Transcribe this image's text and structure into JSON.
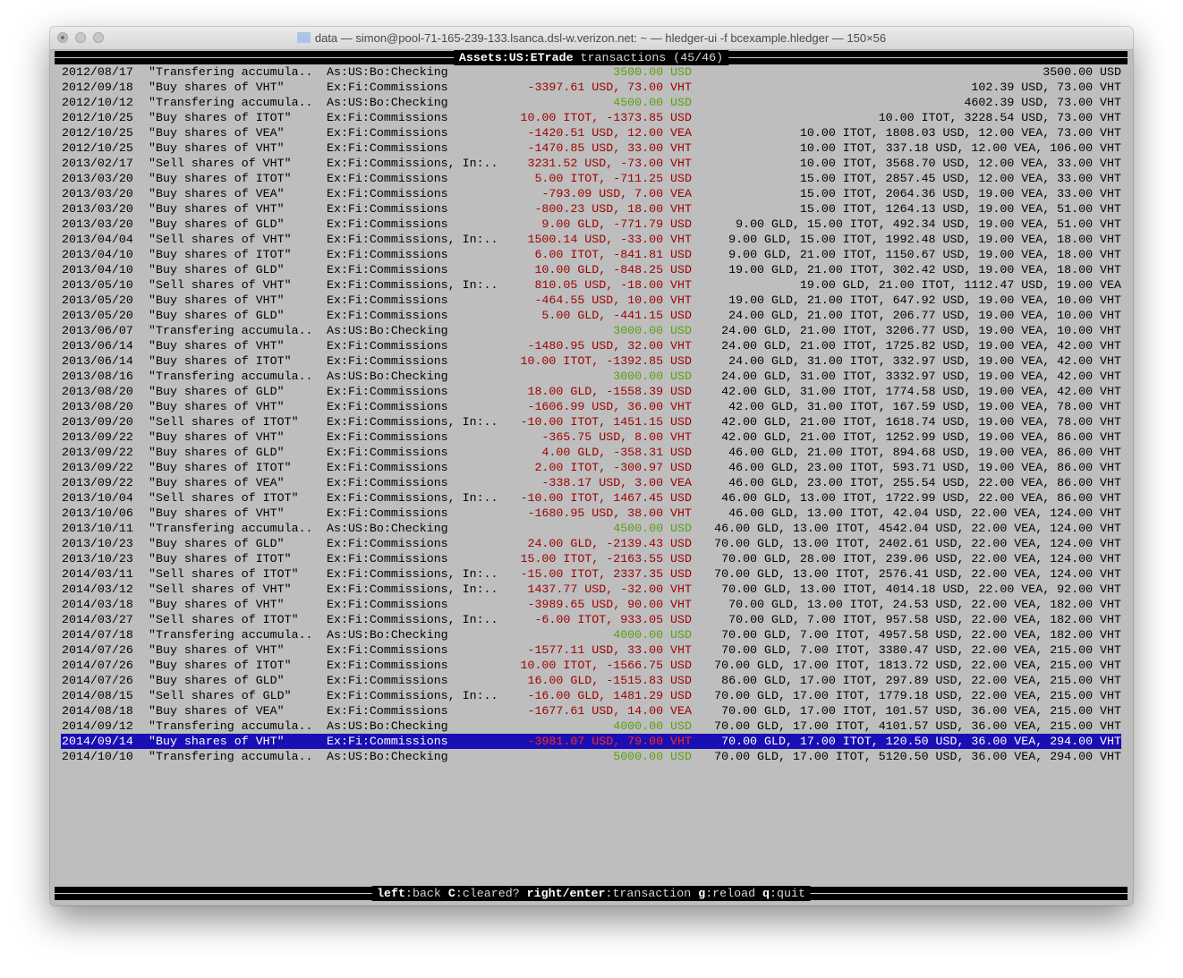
{
  "window": {
    "title": "data — simon@pool-71-165-239-133.lsanca.dsl-w.verizon.net: ~ — hledger-ui -f bcexample.hledger — 150×56"
  },
  "header": {
    "account": "Assets:US:ETrade",
    "suffix": " transactions (45/46)"
  },
  "colors": {
    "deposit": "#5aa012",
    "amount": "#9c0000",
    "selected_bg": "#1a0fb4",
    "background": "#bebebe"
  },
  "selected_index": 44,
  "transactions": [
    {
      "date": "2012/08/17",
      "desc": "\"Transfering accumula..",
      "account": "As:US:Bo:Checking",
      "amount": "3500.00 USD",
      "balance": "3500.00 USD",
      "color": "green"
    },
    {
      "date": "2012/09/18",
      "desc": "\"Buy shares of VHT\"",
      "account": "Ex:Fi:Commissions",
      "amount": "-3397.61 USD, 73.00 VHT",
      "balance": "102.39 USD, 73.00 VHT",
      "color": "red"
    },
    {
      "date": "2012/10/12",
      "desc": "\"Transfering accumula..",
      "account": "As:US:Bo:Checking",
      "amount": "4500.00 USD",
      "balance": "4602.39 USD, 73.00 VHT",
      "color": "green"
    },
    {
      "date": "2012/10/25",
      "desc": "\"Buy shares of ITOT\"",
      "account": "Ex:Fi:Commissions",
      "amount": "10.00 ITOT, -1373.85 USD",
      "balance": "10.00 ITOT, 3228.54 USD, 73.00 VHT",
      "color": "red"
    },
    {
      "date": "2012/10/25",
      "desc": "\"Buy shares of VEA\"",
      "account": "Ex:Fi:Commissions",
      "amount": "-1420.51 USD, 12.00 VEA",
      "balance": "10.00 ITOT, 1808.03 USD, 12.00 VEA, 73.00 VHT",
      "color": "red"
    },
    {
      "date": "2012/10/25",
      "desc": "\"Buy shares of VHT\"",
      "account": "Ex:Fi:Commissions",
      "amount": "-1470.85 USD, 33.00 VHT",
      "balance": "10.00 ITOT, 337.18 USD, 12.00 VEA, 106.00 VHT",
      "color": "red"
    },
    {
      "date": "2013/02/17",
      "desc": "\"Sell shares of VHT\"",
      "account": "Ex:Fi:Commissions, In:..",
      "amount": "3231.52 USD, -73.00 VHT",
      "balance": "10.00 ITOT, 3568.70 USD, 12.00 VEA, 33.00 VHT",
      "color": "red"
    },
    {
      "date": "2013/03/20",
      "desc": "\"Buy shares of ITOT\"",
      "account": "Ex:Fi:Commissions",
      "amount": "5.00 ITOT, -711.25 USD",
      "balance": "15.00 ITOT, 2857.45 USD, 12.00 VEA, 33.00 VHT",
      "color": "red"
    },
    {
      "date": "2013/03/20",
      "desc": "\"Buy shares of VEA\"",
      "account": "Ex:Fi:Commissions",
      "amount": "-793.09 USD, 7.00 VEA",
      "balance": "15.00 ITOT, 2064.36 USD, 19.00 VEA, 33.00 VHT",
      "color": "red"
    },
    {
      "date": "2013/03/20",
      "desc": "\"Buy shares of VHT\"",
      "account": "Ex:Fi:Commissions",
      "amount": "-800.23 USD, 18.00 VHT",
      "balance": "15.00 ITOT, 1264.13 USD, 19.00 VEA, 51.00 VHT",
      "color": "red"
    },
    {
      "date": "2013/03/20",
      "desc": "\"Buy shares of GLD\"",
      "account": "Ex:Fi:Commissions",
      "amount": "9.00 GLD, -771.79 USD",
      "balance": "9.00 GLD, 15.00 ITOT, 492.34 USD, 19.00 VEA, 51.00 VHT",
      "color": "red"
    },
    {
      "date": "2013/04/04",
      "desc": "\"Sell shares of VHT\"",
      "account": "Ex:Fi:Commissions, In:..",
      "amount": "1500.14 USD, -33.00 VHT",
      "balance": "9.00 GLD, 15.00 ITOT, 1992.48 USD, 19.00 VEA, 18.00 VHT",
      "color": "red"
    },
    {
      "date": "2013/04/10",
      "desc": "\"Buy shares of ITOT\"",
      "account": "Ex:Fi:Commissions",
      "amount": "6.00 ITOT, -841.81 USD",
      "balance": "9.00 GLD, 21.00 ITOT, 1150.67 USD, 19.00 VEA, 18.00 VHT",
      "color": "red"
    },
    {
      "date": "2013/04/10",
      "desc": "\"Buy shares of GLD\"",
      "account": "Ex:Fi:Commissions",
      "amount": "10.00 GLD, -848.25 USD",
      "balance": "19.00 GLD, 21.00 ITOT, 302.42 USD, 19.00 VEA, 18.00 VHT",
      "color": "red"
    },
    {
      "date": "2013/05/10",
      "desc": "\"Sell shares of VHT\"",
      "account": "Ex:Fi:Commissions, In:..",
      "amount": "810.05 USD, -18.00 VHT",
      "balance": "19.00 GLD, 21.00 ITOT, 1112.47 USD, 19.00 VEA",
      "color": "red"
    },
    {
      "date": "2013/05/20",
      "desc": "\"Buy shares of VHT\"",
      "account": "Ex:Fi:Commissions",
      "amount": "-464.55 USD, 10.00 VHT",
      "balance": "19.00 GLD, 21.00 ITOT, 647.92 USD, 19.00 VEA, 10.00 VHT",
      "color": "red"
    },
    {
      "date": "2013/05/20",
      "desc": "\"Buy shares of GLD\"",
      "account": "Ex:Fi:Commissions",
      "amount": "5.00 GLD, -441.15 USD",
      "balance": "24.00 GLD, 21.00 ITOT, 206.77 USD, 19.00 VEA, 10.00 VHT",
      "color": "red"
    },
    {
      "date": "2013/06/07",
      "desc": "\"Transfering accumula..",
      "account": "As:US:Bo:Checking",
      "amount": "3000.00 USD",
      "balance": "24.00 GLD, 21.00 ITOT, 3206.77 USD, 19.00 VEA, 10.00 VHT",
      "color": "green"
    },
    {
      "date": "2013/06/14",
      "desc": "\"Buy shares of VHT\"",
      "account": "Ex:Fi:Commissions",
      "amount": "-1480.95 USD, 32.00 VHT",
      "balance": "24.00 GLD, 21.00 ITOT, 1725.82 USD, 19.00 VEA, 42.00 VHT",
      "color": "red"
    },
    {
      "date": "2013/06/14",
      "desc": "\"Buy shares of ITOT\"",
      "account": "Ex:Fi:Commissions",
      "amount": "10.00 ITOT, -1392.85 USD",
      "balance": "24.00 GLD, 31.00 ITOT, 332.97 USD, 19.00 VEA, 42.00 VHT",
      "color": "red"
    },
    {
      "date": "2013/08/16",
      "desc": "\"Transfering accumula..",
      "account": "As:US:Bo:Checking",
      "amount": "3000.00 USD",
      "balance": "24.00 GLD, 31.00 ITOT, 3332.97 USD, 19.00 VEA, 42.00 VHT",
      "color": "green"
    },
    {
      "date": "2013/08/20",
      "desc": "\"Buy shares of GLD\"",
      "account": "Ex:Fi:Commissions",
      "amount": "18.00 GLD, -1558.39 USD",
      "balance": "42.00 GLD, 31.00 ITOT, 1774.58 USD, 19.00 VEA, 42.00 VHT",
      "color": "red"
    },
    {
      "date": "2013/08/20",
      "desc": "\"Buy shares of VHT\"",
      "account": "Ex:Fi:Commissions",
      "amount": "-1606.99 USD, 36.00 VHT",
      "balance": "42.00 GLD, 31.00 ITOT, 167.59 USD, 19.00 VEA, 78.00 VHT",
      "color": "red"
    },
    {
      "date": "2013/09/20",
      "desc": "\"Sell shares of ITOT\"",
      "account": "Ex:Fi:Commissions, In:..",
      "amount": "-10.00 ITOT, 1451.15 USD",
      "balance": "42.00 GLD, 21.00 ITOT, 1618.74 USD, 19.00 VEA, 78.00 VHT",
      "color": "red"
    },
    {
      "date": "2013/09/22",
      "desc": "\"Buy shares of VHT\"",
      "account": "Ex:Fi:Commissions",
      "amount": "-365.75 USD, 8.00 VHT",
      "balance": "42.00 GLD, 21.00 ITOT, 1252.99 USD, 19.00 VEA, 86.00 VHT",
      "color": "red"
    },
    {
      "date": "2013/09/22",
      "desc": "\"Buy shares of GLD\"",
      "account": "Ex:Fi:Commissions",
      "amount": "4.00 GLD, -358.31 USD",
      "balance": "46.00 GLD, 21.00 ITOT, 894.68 USD, 19.00 VEA, 86.00 VHT",
      "color": "red"
    },
    {
      "date": "2013/09/22",
      "desc": "\"Buy shares of ITOT\"",
      "account": "Ex:Fi:Commissions",
      "amount": "2.00 ITOT, -300.97 USD",
      "balance": "46.00 GLD, 23.00 ITOT, 593.71 USD, 19.00 VEA, 86.00 VHT",
      "color": "red"
    },
    {
      "date": "2013/09/22",
      "desc": "\"Buy shares of VEA\"",
      "account": "Ex:Fi:Commissions",
      "amount": "-338.17 USD, 3.00 VEA",
      "balance": "46.00 GLD, 23.00 ITOT, 255.54 USD, 22.00 VEA, 86.00 VHT",
      "color": "red"
    },
    {
      "date": "2013/10/04",
      "desc": "\"Sell shares of ITOT\"",
      "account": "Ex:Fi:Commissions, In:..",
      "amount": "-10.00 ITOT, 1467.45 USD",
      "balance": "46.00 GLD, 13.00 ITOT, 1722.99 USD, 22.00 VEA, 86.00 VHT",
      "color": "red"
    },
    {
      "date": "2013/10/06",
      "desc": "\"Buy shares of VHT\"",
      "account": "Ex:Fi:Commissions",
      "amount": "-1680.95 USD, 38.00 VHT",
      "balance": "46.00 GLD, 13.00 ITOT, 42.04 USD, 22.00 VEA, 124.00 VHT",
      "color": "red"
    },
    {
      "date": "2013/10/11",
      "desc": "\"Transfering accumula..",
      "account": "As:US:Bo:Checking",
      "amount": "4500.00 USD",
      "balance": "46.00 GLD, 13.00 ITOT, 4542.04 USD, 22.00 VEA, 124.00 VHT",
      "color": "green"
    },
    {
      "date": "2013/10/23",
      "desc": "\"Buy shares of GLD\"",
      "account": "Ex:Fi:Commissions",
      "amount": "24.00 GLD, -2139.43 USD",
      "balance": "70.00 GLD, 13.00 ITOT, 2402.61 USD, 22.00 VEA, 124.00 VHT",
      "color": "red"
    },
    {
      "date": "2013/10/23",
      "desc": "\"Buy shares of ITOT\"",
      "account": "Ex:Fi:Commissions",
      "amount": "15.00 ITOT, -2163.55 USD",
      "balance": "70.00 GLD, 28.00 ITOT, 239.06 USD, 22.00 VEA, 124.00 VHT",
      "color": "red"
    },
    {
      "date": "2014/03/11",
      "desc": "\"Sell shares of ITOT\"",
      "account": "Ex:Fi:Commissions, In:..",
      "amount": "-15.00 ITOT, 2337.35 USD",
      "balance": "70.00 GLD, 13.00 ITOT, 2576.41 USD, 22.00 VEA, 124.00 VHT",
      "color": "red"
    },
    {
      "date": "2014/03/12",
      "desc": "\"Sell shares of VHT\"",
      "account": "Ex:Fi:Commissions, In:..",
      "amount": "1437.77 USD, -32.00 VHT",
      "balance": "70.00 GLD, 13.00 ITOT, 4014.18 USD, 22.00 VEA, 92.00 VHT",
      "color": "red"
    },
    {
      "date": "2014/03/18",
      "desc": "\"Buy shares of VHT\"",
      "account": "Ex:Fi:Commissions",
      "amount": "-3989.65 USD, 90.00 VHT",
      "balance": "70.00 GLD, 13.00 ITOT, 24.53 USD, 22.00 VEA, 182.00 VHT",
      "color": "red"
    },
    {
      "date": "2014/03/27",
      "desc": "\"Sell shares of ITOT\"",
      "account": "Ex:Fi:Commissions, In:..",
      "amount": "-6.00 ITOT, 933.05 USD",
      "balance": "70.00 GLD, 7.00 ITOT, 957.58 USD, 22.00 VEA, 182.00 VHT",
      "color": "red"
    },
    {
      "date": "2014/07/18",
      "desc": "\"Transfering accumula..",
      "account": "As:US:Bo:Checking",
      "amount": "4000.00 USD",
      "balance": "70.00 GLD, 7.00 ITOT, 4957.58 USD, 22.00 VEA, 182.00 VHT",
      "color": "green"
    },
    {
      "date": "2014/07/26",
      "desc": "\"Buy shares of VHT\"",
      "account": "Ex:Fi:Commissions",
      "amount": "-1577.11 USD, 33.00 VHT",
      "balance": "70.00 GLD, 7.00 ITOT, 3380.47 USD, 22.00 VEA, 215.00 VHT",
      "color": "red"
    },
    {
      "date": "2014/07/26",
      "desc": "\"Buy shares of ITOT\"",
      "account": "Ex:Fi:Commissions",
      "amount": "10.00 ITOT, -1566.75 USD",
      "balance": "70.00 GLD, 17.00 ITOT, 1813.72 USD, 22.00 VEA, 215.00 VHT",
      "color": "red"
    },
    {
      "date": "2014/07/26",
      "desc": "\"Buy shares of GLD\"",
      "account": "Ex:Fi:Commissions",
      "amount": "16.00 GLD, -1515.83 USD",
      "balance": "86.00 GLD, 17.00 ITOT, 297.89 USD, 22.00 VEA, 215.00 VHT",
      "color": "red"
    },
    {
      "date": "2014/08/15",
      "desc": "\"Sell shares of GLD\"",
      "account": "Ex:Fi:Commissions, In:..",
      "amount": "-16.00 GLD, 1481.29 USD",
      "balance": "70.00 GLD, 17.00 ITOT, 1779.18 USD, 22.00 VEA, 215.00 VHT",
      "color": "red"
    },
    {
      "date": "2014/08/18",
      "desc": "\"Buy shares of VEA\"",
      "account": "Ex:Fi:Commissions",
      "amount": "-1677.61 USD, 14.00 VEA",
      "balance": "70.00 GLD, 17.00 ITOT, 101.57 USD, 36.00 VEA, 215.00 VHT",
      "color": "red"
    },
    {
      "date": "2014/09/12",
      "desc": "\"Transfering accumula..",
      "account": "As:US:Bo:Checking",
      "amount": "4000.00 USD",
      "balance": "70.00 GLD, 17.00 ITOT, 4101.57 USD, 36.00 VEA, 215.00 VHT",
      "color": "green"
    },
    {
      "date": "2014/09/14",
      "desc": "\"Buy shares of VHT\"",
      "account": "Ex:Fi:Commissions",
      "amount": "-3981.07 USD, 79.00 VHT",
      "balance": "70.00 GLD, 17.00 ITOT, 120.50 USD, 36.00 VEA, 294.00 VHT",
      "color": "red"
    },
    {
      "date": "2014/10/10",
      "desc": "\"Transfering accumula..",
      "account": "As:US:Bo:Checking",
      "amount": "5000.00 USD",
      "balance": "70.00 GLD, 17.00 ITOT, 5120.50 USD, 36.00 VEA, 294.00 VHT",
      "color": "green"
    }
  ],
  "footer": {
    "keys": [
      {
        "key": "left",
        "label": ":back"
      },
      {
        "key": "C",
        "label": ":cleared?"
      },
      {
        "key": "right/enter",
        "label": ":transaction"
      },
      {
        "key": "g",
        "label": ":reload"
      },
      {
        "key": "q",
        "label": ":quit"
      }
    ]
  }
}
